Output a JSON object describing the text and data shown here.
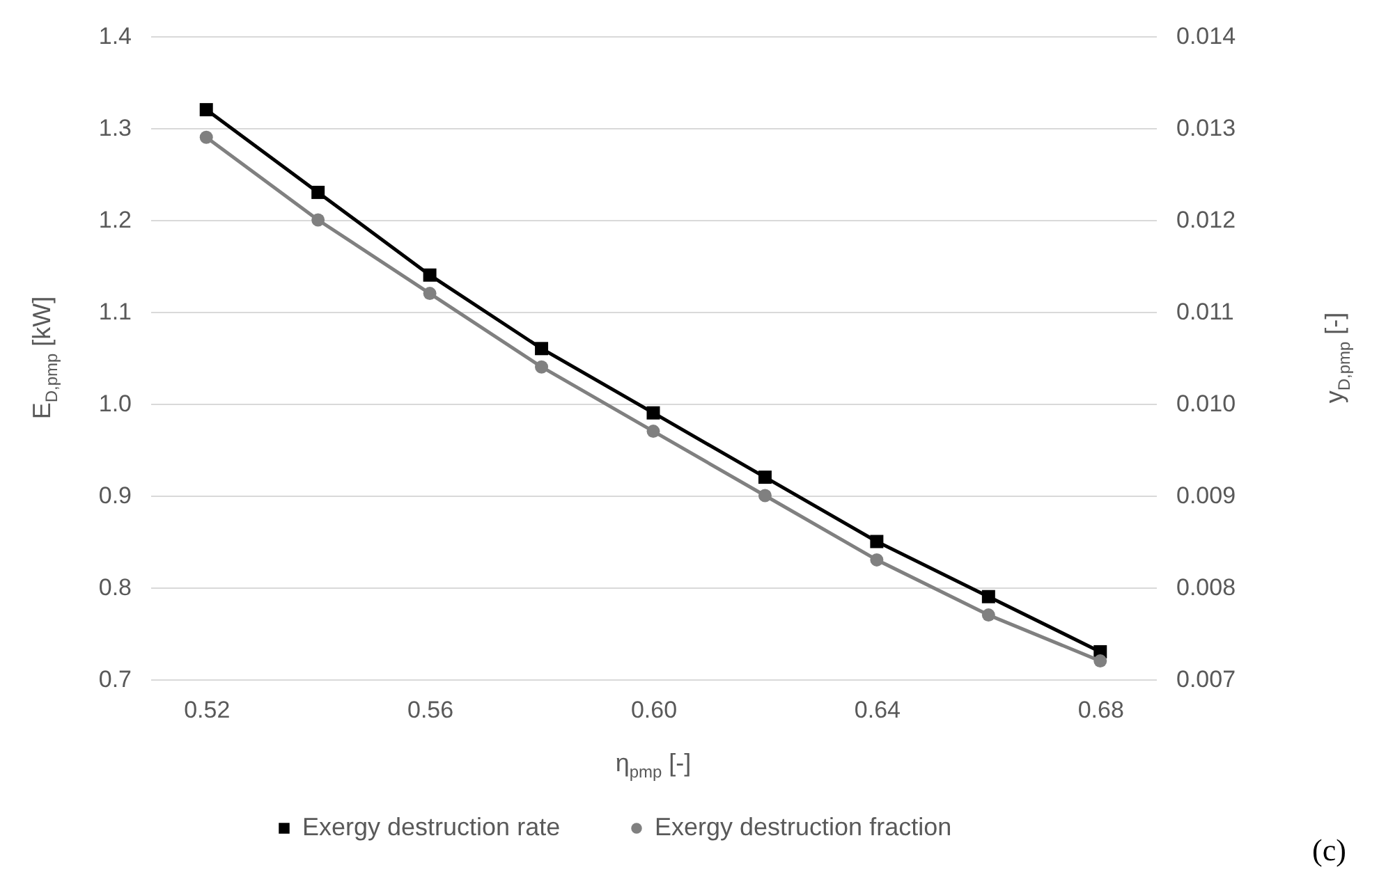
{
  "chart_data": {
    "type": "line",
    "xlabel": "η$_{pmp}$ [-]",
    "ylabel": "E$_{D,pmp}$ [kW]",
    "y2label": "y$_{D,pmp}$ [-]",
    "x": [
      0.52,
      0.54,
      0.56,
      0.58,
      0.6,
      0.62,
      0.64,
      0.66,
      0.68
    ],
    "series": [
      {
        "name": "Exergy destruction rate",
        "color": "#000000",
        "marker": "square",
        "values": [
          1.32,
          1.23,
          1.14,
          1.06,
          0.99,
          0.92,
          0.85,
          0.79,
          0.73
        ]
      },
      {
        "name": "Exergy destruction fraction",
        "color": "#808080",
        "marker": "circle",
        "axis": "y2",
        "values": [
          0.0129,
          0.012,
          0.0112,
          0.0104,
          0.0097,
          0.009,
          0.0083,
          0.0077,
          0.0072
        ]
      }
    ],
    "xlim": [
      0.51,
      0.69
    ],
    "xticks": [
      {
        "value": 0.52,
        "label": "0.52"
      },
      {
        "value": 0.56,
        "label": "0.56"
      },
      {
        "value": 0.6,
        "label": "0.60"
      },
      {
        "value": 0.64,
        "label": "0.64"
      },
      {
        "value": 0.68,
        "label": "0.68"
      }
    ],
    "ylim": [
      0.7,
      1.4
    ],
    "yticks": [
      {
        "value": 0.7,
        "label": "0.7"
      },
      {
        "value": 0.8,
        "label": "0.8"
      },
      {
        "value": 0.9,
        "label": "0.9"
      },
      {
        "value": 1.0,
        "label": "1.0"
      },
      {
        "value": 1.1,
        "label": "1.1"
      },
      {
        "value": 1.2,
        "label": "1.2"
      },
      {
        "value": 1.3,
        "label": "1.3"
      },
      {
        "value": 1.4,
        "label": "1.4"
      }
    ],
    "y2lim": [
      0.007,
      0.014
    ],
    "y2ticks": [
      0.007,
      0.008,
      0.009,
      {
        "value": 0.01,
        "label": "0.010"
      },
      0.011,
      0.012,
      0.013,
      0.014
    ],
    "grid": "y",
    "legend": "bottom",
    "line_style": "solid",
    "annotations": [
      "(c)"
    ]
  }
}
